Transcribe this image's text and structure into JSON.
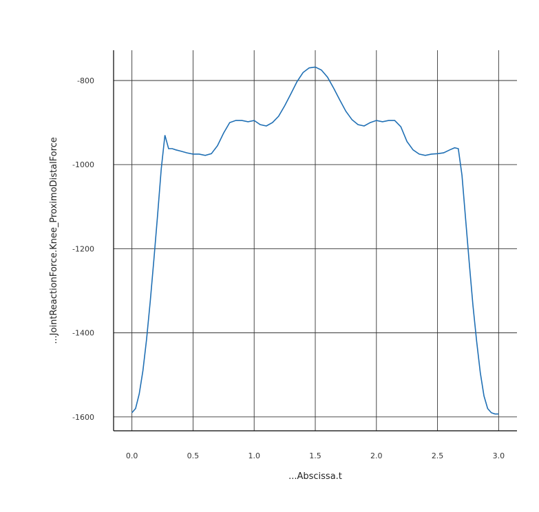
{
  "chart_data": {
    "type": "line",
    "title": "",
    "xlabel": "...Abscissa.t",
    "ylabel": "...JointReactionForce.Knee_ProximoDistalForce",
    "xlim": [
      -0.15,
      3.15
    ],
    "ylim": [
      -1633,
      -728
    ],
    "x_ticks": [
      0.0,
      0.5,
      1.0,
      1.5,
      2.0,
      2.5,
      3.0
    ],
    "x_tick_labels": [
      "0.0",
      "0.5",
      "1.0",
      "1.5",
      "2.0",
      "2.5",
      "3.0"
    ],
    "y_ticks": [
      -1600,
      -1400,
      -1200,
      -1000,
      -800
    ],
    "y_tick_labels": [
      "-1600",
      "-1400",
      "-1200",
      "-1000",
      "-800"
    ],
    "grid": true,
    "line_color": "#1f6fb4",
    "series": [
      {
        "x": [
          0.0,
          0.03,
          0.06,
          0.09,
          0.12,
          0.15,
          0.18,
          0.21,
          0.24,
          0.27,
          0.3,
          0.33,
          0.36,
          0.4,
          0.45,
          0.5,
          0.55,
          0.6,
          0.65,
          0.7,
          0.75,
          0.8,
          0.85,
          0.9,
          0.95,
          1.0,
          1.05,
          1.1,
          1.15,
          1.2,
          1.25,
          1.3,
          1.35,
          1.4,
          1.45,
          1.5,
          1.55,
          1.6,
          1.65,
          1.7,
          1.75,
          1.8,
          1.85,
          1.9,
          1.95,
          2.0,
          2.05,
          2.1,
          2.15,
          2.2,
          2.25,
          2.3,
          2.35,
          2.4,
          2.45,
          2.5,
          2.55,
          2.6,
          2.64,
          2.67,
          2.7,
          2.73,
          2.76,
          2.79,
          2.82,
          2.85,
          2.88,
          2.91,
          2.94,
          2.97,
          3.0
        ],
        "y": [
          -1590,
          -1580,
          -1545,
          -1490,
          -1415,
          -1325,
          -1225,
          -1120,
          -1010,
          -930,
          -962,
          -962,
          -965,
          -968,
          -972,
          -975,
          -975,
          -978,
          -974,
          -955,
          -925,
          -900,
          -895,
          -895,
          -898,
          -895,
          -905,
          -908,
          -900,
          -885,
          -860,
          -832,
          -803,
          -781,
          -770,
          -768,
          -775,
          -792,
          -818,
          -846,
          -873,
          -893,
          -905,
          -908,
          -900,
          -895,
          -898,
          -895,
          -895,
          -910,
          -945,
          -965,
          -975,
          -978,
          -975,
          -974,
          -972,
          -965,
          -960,
          -962,
          -1025,
          -1130,
          -1235,
          -1335,
          -1420,
          -1495,
          -1550,
          -1580,
          -1590,
          -1593,
          -1593
        ]
      }
    ]
  }
}
